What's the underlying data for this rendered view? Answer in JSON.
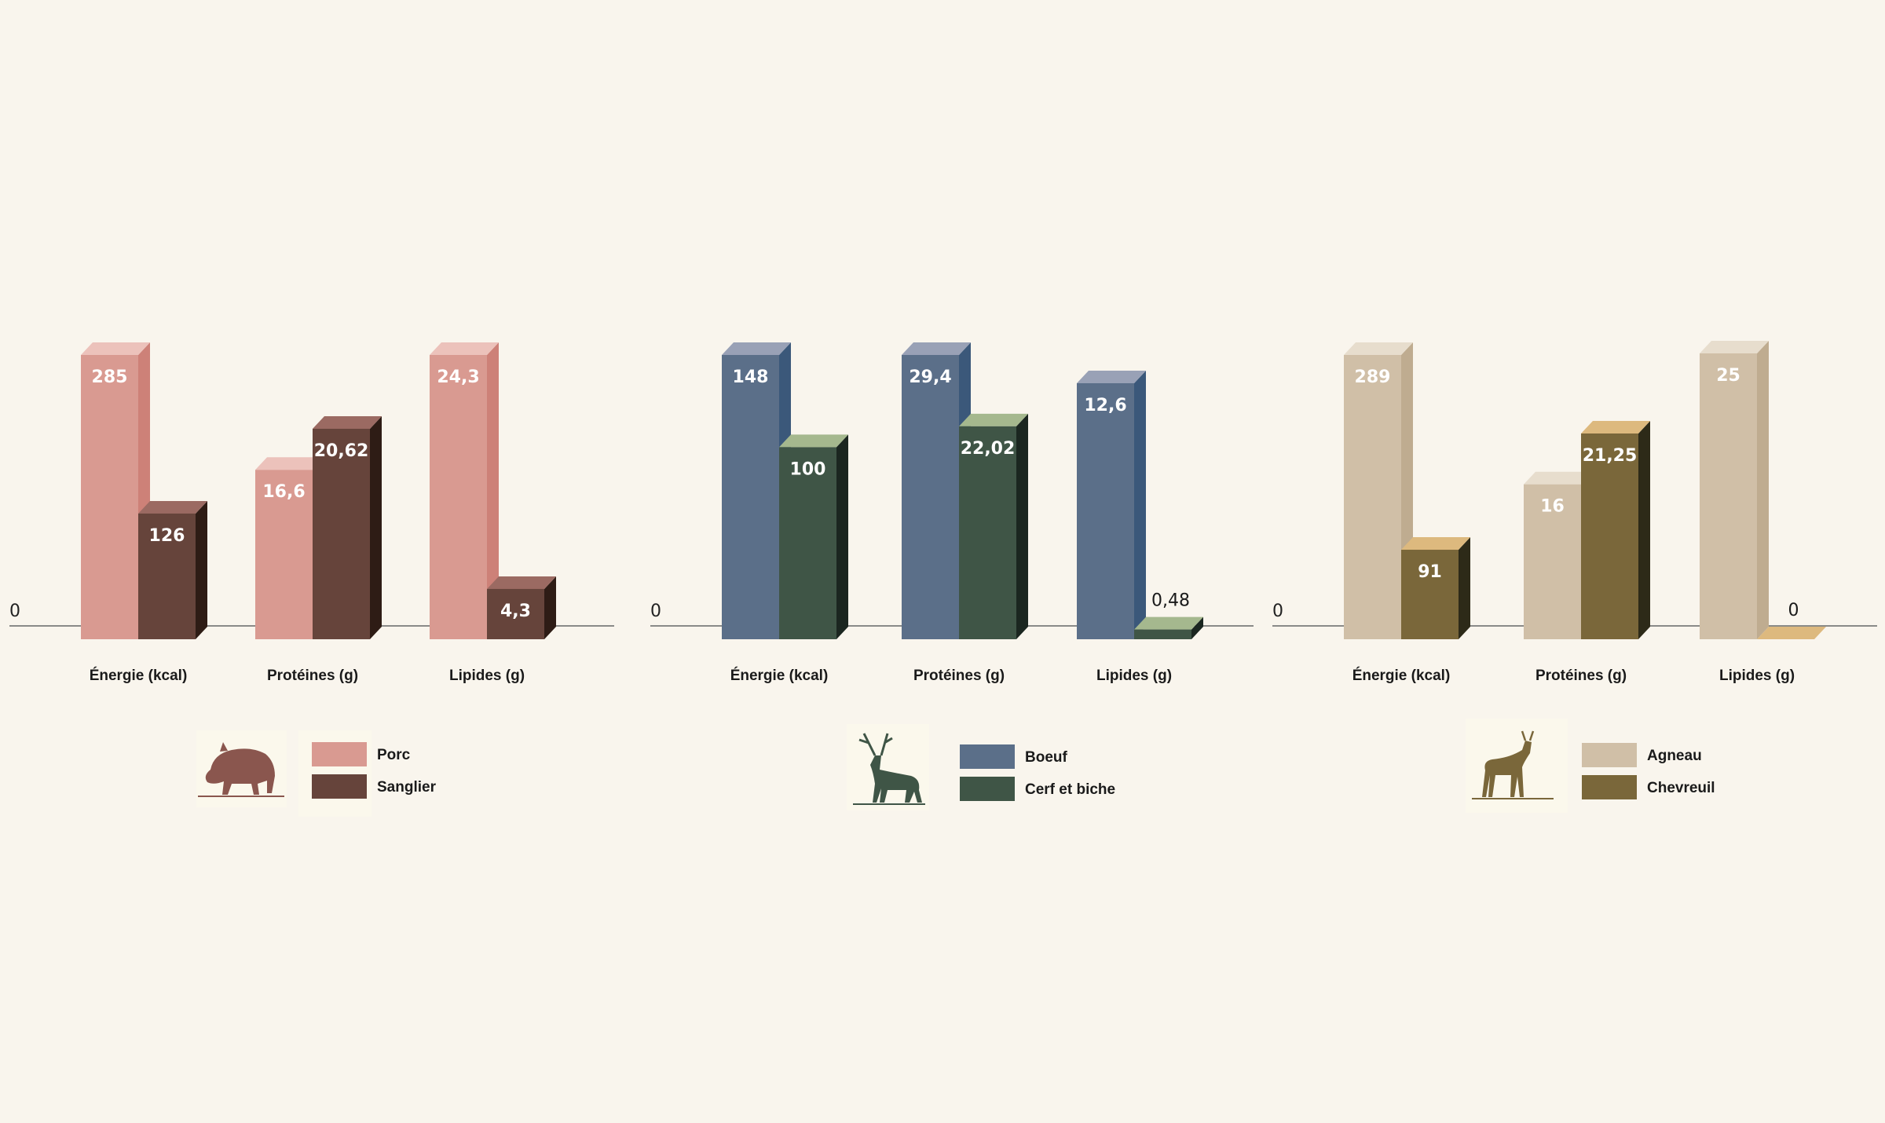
{
  "chart_data": [
    {
      "type": "bar",
      "categories": [
        "Énergie (kcal)",
        "Protéines (g)",
        "Lipides (g)"
      ],
      "zero_label": "0",
      "series": [
        {
          "name": "Porc",
          "values": [
            285,
            16.6,
            24.3
          ],
          "labels": [
            "285",
            "16,6",
            "24,3"
          ],
          "colors": {
            "front": "#d99a91",
            "top": "#ecc2bb",
            "side": "#cd8178"
          }
        },
        {
          "name": "Sanglier",
          "values": [
            126,
            20.62,
            4.3
          ],
          "labels": [
            "126",
            "20,62",
            "4,3"
          ],
          "colors": {
            "front": "#66443b",
            "top": "#9b6a62",
            "side": "#2e1c15"
          }
        }
      ],
      "legend_icon": "boar-icon"
    },
    {
      "type": "bar",
      "categories": [
        "Énergie (kcal)",
        "Protéines (g)",
        "Lipides (g)"
      ],
      "zero_label": "0",
      "series": [
        {
          "name": "Boeuf",
          "values": [
            148,
            29.4,
            12.6
          ],
          "labels": [
            "148",
            "29,4",
            "12,6"
          ],
          "colors": {
            "front": "#5b6f89",
            "top": "#99a1b6",
            "side": "#3b587a"
          }
        },
        {
          "name": "Cerf et biche",
          "values": [
            100,
            22.02,
            0.48
          ],
          "labels": [
            "100",
            "22,02",
            "0,48"
          ],
          "colors": {
            "front": "#3f5546",
            "top": "#a5b88e",
            "side": "#1b2620"
          }
        }
      ],
      "legend_icon": "deer-stag-icon"
    },
    {
      "type": "bar",
      "categories": [
        "Énergie (kcal)",
        "Protéines (g)",
        "Lipides (g)"
      ],
      "zero_label": "0",
      "series": [
        {
          "name": "Agneau",
          "values": [
            289,
            16,
            25
          ],
          "labels": [
            "289",
            "16",
            "25"
          ],
          "colors": {
            "front": "#d0bfa7",
            "top": "#e7ddcd",
            "side": "#bfac90"
          }
        },
        {
          "name": "Chevreuil",
          "values": [
            91,
            21.25,
            0
          ],
          "labels": [
            "91",
            "21,25",
            "0"
          ],
          "colors": {
            "front": "#7a673a",
            "top": "#ddb97e",
            "side": "#2d2a18"
          }
        }
      ],
      "legend_icon": "roe-deer-icon"
    }
  ],
  "colors": {
    "background": "#f9f5ed",
    "axis": "#666666",
    "label_light": "#ffffff",
    "label_dark": "#1a1a1a"
  }
}
